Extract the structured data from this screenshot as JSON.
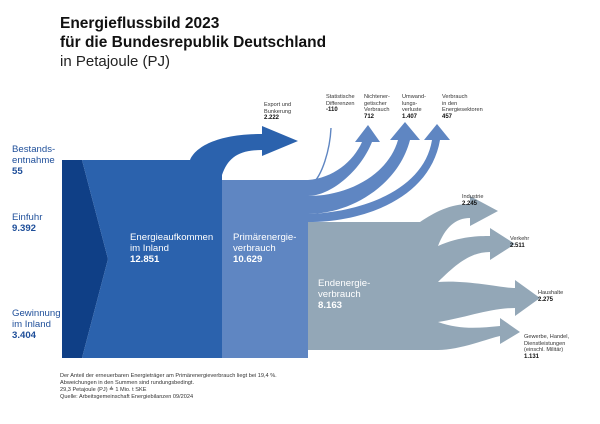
{
  "title": {
    "line1": "Energieflussbild 2023",
    "line2": "für die Bundesrepublik Deutschland",
    "line3": "in Petajoule (PJ)"
  },
  "inputs": {
    "bestand": {
      "label_1": "Bestands-",
      "label_2": "entnahme",
      "value": "55"
    },
    "einfuhr": {
      "label": "Einfuhr",
      "value": "9.392"
    },
    "gewinnung": {
      "label_1": "Gewinnung",
      "label_2": "im Inland",
      "value": "3.404"
    }
  },
  "blocks": {
    "aufkommen": {
      "label_1": "Energieaufkommen",
      "label_2": "im Inland",
      "value": "12.851"
    },
    "primaer": {
      "label_1": "Primärenergie-",
      "label_2": "verbrauch",
      "value": "10.629"
    },
    "end": {
      "label_1": "Endenergie-",
      "label_2": "verbrauch",
      "value": "8.163"
    }
  },
  "outputs": {
    "export": {
      "label_1": "Export und",
      "label_2": "Bunkerung",
      "value": "2.222"
    },
    "statistik": {
      "label_1": "Statistische",
      "label_2": "Differenzen",
      "value": "-110"
    },
    "nichtenergetisch": {
      "label_1": "Nichtener-",
      "label_2": "getischer",
      "label_3": "Verbrauch",
      "value": "712"
    },
    "umwandlung": {
      "label_1": "Umwand-",
      "label_2": "lungs-",
      "label_3": "verluste",
      "value": "1.407"
    },
    "sektoren": {
      "label_1": "Verbrauch",
      "label_2": "in den",
      "label_3": "Energiesektoren",
      "value": "457"
    },
    "industrie": {
      "label": "Industrie",
      "value": "2.245"
    },
    "verkehr": {
      "label": "Verkehr",
      "value": "2.511"
    },
    "haushalte": {
      "label": "Haushalte",
      "value": "2.275"
    },
    "gewerbe": {
      "label_1": "Gewerbe, Handel,",
      "label_2": "Dienstleistungen",
      "label_3": "(einschl. Militär)",
      "value": "1.131"
    }
  },
  "footnote": {
    "line1": "Der Anteil der erneuerbaren Energieträger am Primärenergieverbrauch liegt bei 19,4 %.",
    "line2": "Abweichungen in den Summen sind rundungsbedingt.",
    "line3": "29,3 Petajoule (PJ) ≙ 1 Mio. t SKE",
    "line4": "Quelle: Arbeitsgemeinschaft Energiebilanzen 09/2024"
  },
  "colors": {
    "input": "#0f3f86",
    "aufkommen": "#2b62ad",
    "primaer": "#5f86c2",
    "end": "#93a7b7"
  }
}
